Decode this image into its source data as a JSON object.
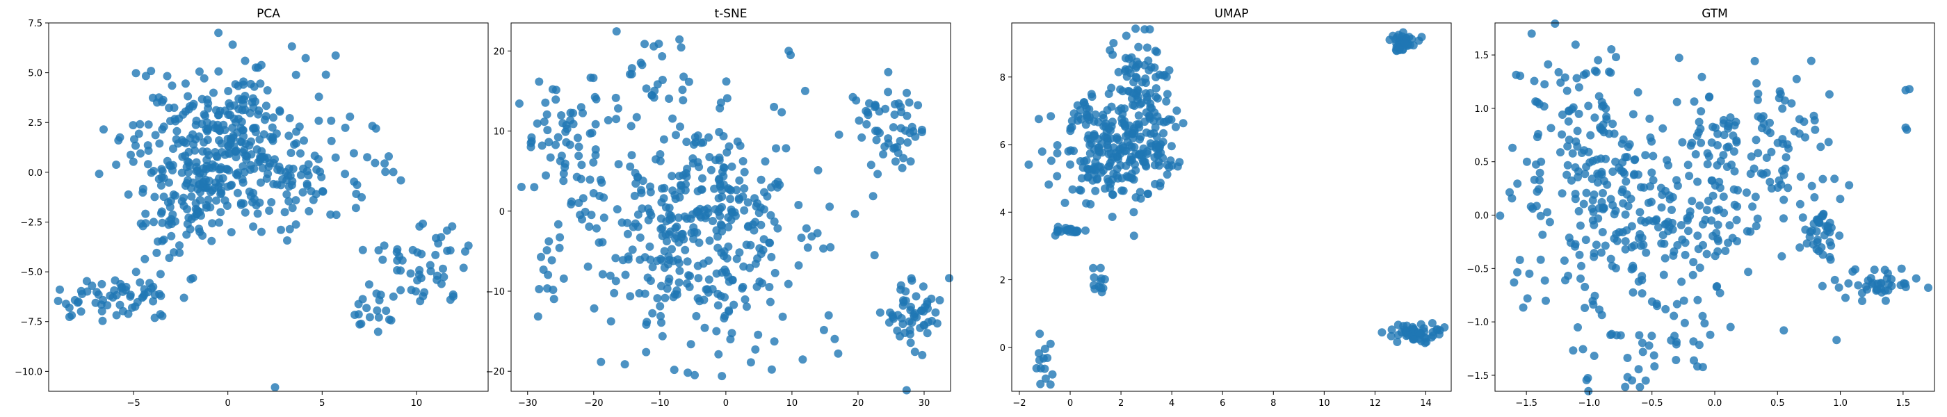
{
  "chart_data": [
    {
      "type": "scatter",
      "title": "PCA",
      "xlabel": "",
      "ylabel": "",
      "xlim": [
        -9.5,
        13.8
      ],
      "ylim": [
        -11.0,
        7.5
      ],
      "xticks": [
        -5,
        0,
        5,
        10
      ],
      "xtick_labels": [
        "−5",
        "0",
        "5",
        "10"
      ],
      "yticks": [
        -10.0,
        -7.5,
        -5.0,
        -2.5,
        0.0,
        2.5,
        5.0,
        7.5
      ],
      "ytick_labels": [
        "−10.0",
        "−7.5",
        "−5.0",
        "−2.5",
        "0.0",
        "2.5",
        "5.0",
        "7.5"
      ],
      "grid": false,
      "clusters": [
        {
          "center": [
            -0.5,
            1.5
          ],
          "spread": [
            2.3,
            1.8
          ],
          "n": 320
        },
        {
          "center": [
            -2.5,
            -2.0
          ],
          "spread": [
            1.3,
            1.1
          ],
          "n": 70
        },
        {
          "center": [
            3.5,
            0.0
          ],
          "spread": [
            2.0,
            1.3
          ],
          "n": 60
        },
        {
          "center": [
            -6.5,
            -6.4
          ],
          "spread": [
            1.2,
            0.5
          ],
          "n": 45
        },
        {
          "center": [
            -3.6,
            -5.5
          ],
          "spread": [
            1.0,
            1.0
          ],
          "n": 20
        },
        {
          "center": [
            9.5,
            -5.0
          ],
          "spread": [
            1.3,
            1.0
          ],
          "n": 35
        },
        {
          "center": [
            7.5,
            -7.0
          ],
          "spread": [
            0.8,
            0.6
          ],
          "n": 15
        },
        {
          "center": [
            11.5,
            -4.0
          ],
          "spread": [
            1.0,
            1.0
          ],
          "n": 15
        },
        {
          "center": [
            7.5,
            0.0
          ],
          "spread": [
            0.8,
            0.8
          ],
          "n": 10
        }
      ],
      "points": [
        [
          -0.5,
          7.0
        ],
        [
          2.5,
          -10.8
        ],
        [
          12.5,
          -4.8
        ],
        [
          -8.4,
          -6.8
        ],
        [
          11.8,
          -6.4
        ],
        [
          5.2,
          4.9
        ]
      ]
    },
    {
      "type": "scatter",
      "title": "t-SNE",
      "xlabel": "",
      "ylabel": "",
      "xlim": [
        -32.5,
        34.0
      ],
      "ylim": [
        -22.5,
        23.5
      ],
      "xticks": [
        -30,
        -20,
        -10,
        0,
        10,
        20,
        30
      ],
      "xtick_labels": [
        "−30",
        "−20",
        "−10",
        "0",
        "10",
        "20",
        "30"
      ],
      "yticks": [
        -20,
        -10,
        0,
        10,
        20
      ],
      "ytick_labels": [
        "−20",
        "−10",
        "0",
        "10",
        "20"
      ],
      "grid": false,
      "clusters": [
        {
          "center": [
            -3.5,
            -2.5
          ],
          "spread": [
            8.0,
            7.5
          ],
          "n": 380
        },
        {
          "center": [
            -24.0,
            10.5
          ],
          "spread": [
            3.5,
            3.5
          ],
          "n": 50
        },
        {
          "center": [
            -22.0,
            3.0
          ],
          "spread": [
            2.0,
            2.0
          ],
          "n": 20
        },
        {
          "center": [
            25.0,
            10.5
          ],
          "spread": [
            2.6,
            2.6
          ],
          "n": 55
        },
        {
          "center": [
            28.0,
            -12.5
          ],
          "spread": [
            2.2,
            2.4
          ],
          "n": 55
        },
        {
          "center": [
            -9.0,
            17.0
          ],
          "spread": [
            3.0,
            2.5
          ],
          "n": 20
        },
        {
          "center": [
            -26.0,
            -7.0
          ],
          "spread": [
            1.5,
            2.5
          ],
          "n": 12
        }
      ],
      "points": [
        [
          -29.5,
          8.5
        ],
        [
          -29.5,
          8.0
        ],
        [
          9.5,
          20.0
        ],
        [
          9.8,
          19.5
        ],
        [
          17.0,
          -17.8
        ],
        [
          22.5,
          -5.5
        ],
        [
          -29.0,
          3.0
        ],
        [
          12.0,
          15.0
        ]
      ]
    },
    {
      "type": "scatter",
      "title": "UMAP",
      "xlabel": "",
      "ylabel": "",
      "xlim": [
        -2.3,
        15.0
      ],
      "ylim": [
        -1.3,
        9.6
      ],
      "xticks": [
        -2,
        0,
        2,
        4,
        6,
        8,
        10,
        12,
        14
      ],
      "xtick_labels": [
        "−2",
        "0",
        "2",
        "4",
        "6",
        "8",
        "10",
        "12",
        "14"
      ],
      "yticks": [
        0,
        2,
        4,
        6,
        8
      ],
      "ytick_labels": [
        "0",
        "2",
        "4",
        "6",
        "8"
      ],
      "grid": false,
      "clusters": [
        {
          "center": [
            1.5,
            6.0
          ],
          "spread": [
            1.1,
            0.8
          ],
          "n": 220
        },
        {
          "center": [
            2.8,
            8.0
          ],
          "spread": [
            0.5,
            0.7
          ],
          "n": 60
        },
        {
          "center": [
            3.3,
            6.0
          ],
          "spread": [
            0.35,
            0.7
          ],
          "n": 50
        },
        {
          "center": [
            -0.1,
            3.45
          ],
          "spread": [
            0.3,
            0.07
          ],
          "n": 20
        },
        {
          "center": [
            1.2,
            2.0
          ],
          "spread": [
            0.18,
            0.3
          ],
          "n": 12
        },
        {
          "center": [
            -1.1,
            -0.5
          ],
          "spread": [
            0.15,
            0.35
          ],
          "n": 12
        },
        {
          "center": [
            13.1,
            9.0
          ],
          "spread": [
            0.25,
            0.13
          ],
          "n": 45
        },
        {
          "center": [
            13.5,
            0.45
          ],
          "spread": [
            0.5,
            0.15
          ],
          "n": 50
        }
      ],
      "points": [
        [
          3.9,
          8.2
        ],
        [
          3.8,
          8.0
        ],
        [
          2.5,
          4.0
        ],
        [
          -0.7,
          -0.8
        ],
        [
          -1.2,
          0.4
        ]
      ]
    },
    {
      "type": "scatter",
      "title": "GTM",
      "xlabel": "",
      "ylabel": "",
      "xlim": [
        -1.75,
        1.75
      ],
      "ylim": [
        -1.65,
        1.8
      ],
      "xticks": [
        -1.5,
        -1.0,
        -0.5,
        0.0,
        0.5,
        1.0,
        1.5
      ],
      "xtick_labels": [
        "−1.5",
        "−1.0",
        "−0.5",
        "0.0",
        "0.5",
        "1.0",
        "1.5"
      ],
      "yticks": [
        -1.5,
        -1.0,
        -0.5,
        0.0,
        0.5,
        1.0,
        1.5
      ],
      "ytick_labels": [
        "−1.5",
        "−1.0",
        "−0.5",
        "0.0",
        "0.5",
        "1.0",
        "1.5"
      ],
      "grid": false,
      "clusters": [
        {
          "center": [
            -0.45,
            0.2
          ],
          "spread": [
            0.5,
            0.5
          ],
          "n": 300
        },
        {
          "center": [
            -1.2,
            1.0
          ],
          "spread": [
            0.25,
            0.4
          ],
          "n": 60
        },
        {
          "center": [
            0.45,
            0.7
          ],
          "spread": [
            0.3,
            0.5
          ],
          "n": 70
        },
        {
          "center": [
            0.85,
            -0.15
          ],
          "spread": [
            0.07,
            0.12
          ],
          "n": 40
        },
        {
          "center": [
            1.3,
            -0.65
          ],
          "spread": [
            0.15,
            0.08
          ],
          "n": 40
        },
        {
          "center": [
            -0.5,
            -1.2
          ],
          "spread": [
            0.35,
            0.25
          ],
          "n": 40
        },
        {
          "center": [
            -1.2,
            -0.5
          ],
          "spread": [
            0.3,
            0.5
          ],
          "n": 30
        }
      ],
      "points": [
        [
          1.55,
          1.18
        ],
        [
          1.52,
          1.17
        ],
        [
          1.52,
          0.82
        ],
        [
          1.53,
          0.8
        ],
        [
          1.7,
          -0.68
        ],
        [
          -0.55,
          -1.55
        ],
        [
          0.55,
          -1.08
        ],
        [
          1.07,
          0.28
        ],
        [
          0.97,
          -1.17
        ]
      ]
    }
  ],
  "style": {
    "marker_color": "#1f77b4",
    "marker_alpha": 0.8
  }
}
